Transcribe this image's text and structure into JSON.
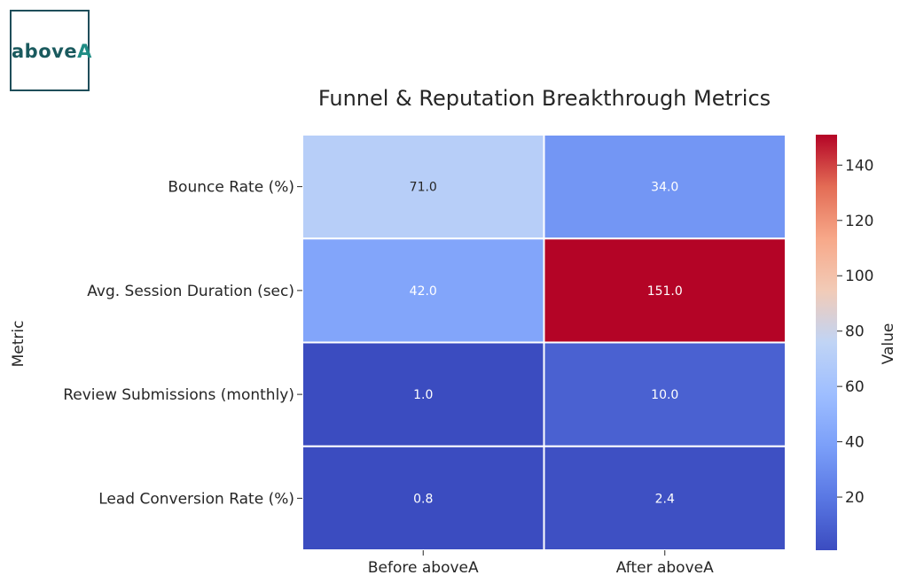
{
  "brand": {
    "logo_text_main": "above",
    "logo_text_accent": "A"
  },
  "chart_data": {
    "type": "heatmap",
    "title": "Funnel & Reputation Breakthrough Metrics",
    "ylabel": "Metric",
    "xlabel": "",
    "colorbar_label": "Value",
    "rows": [
      "Bounce Rate (%)",
      "Avg. Session Duration (sec)",
      "Review Submissions (monthly)",
      "Lead Conversion Rate (%)"
    ],
    "columns": [
      "Before aboveA",
      "After aboveA"
    ],
    "values": [
      [
        71.0,
        34.0
      ],
      [
        42.0,
        151.0
      ],
      [
        1.0,
        10.0
      ],
      [
        0.8,
        2.4
      ]
    ],
    "value_labels": [
      [
        "71.0",
        "34.0"
      ],
      [
        "42.0",
        "151.0"
      ],
      [
        "1.0",
        "10.0"
      ],
      [
        "0.8",
        "2.4"
      ]
    ],
    "colormap": "coolwarm",
    "vmin": 0.8,
    "vmax": 151.0,
    "colorbar_ticks": [
      20,
      40,
      60,
      80,
      100,
      120,
      140
    ]
  }
}
